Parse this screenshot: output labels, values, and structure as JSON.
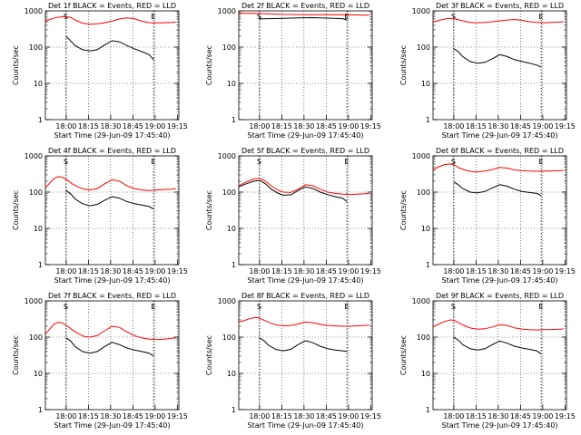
{
  "figure": {
    "ylabel": "Counts/sec",
    "xlabel": "Start Time (29-Jun-09 17:45:40)",
    "colors": {
      "events": "#000000",
      "lld": "#ff0000",
      "axes": "#000000",
      "grid": "#000000"
    }
  },
  "chart_data": [
    {
      "type": "line",
      "title": "Det 1f BLACK = Events, RED = LLD",
      "yscale": "log",
      "ylim": [
        1,
        1000
      ],
      "yticks": [
        "1",
        "10",
        "100",
        "1000"
      ],
      "xticks": [
        "18:00",
        "18:15",
        "18:30",
        "18:45",
        "19:00",
        "19:15"
      ],
      "xlim": [
        0,
        90
      ],
      "marks": [
        {
          "x": 14,
          "label": "S"
        },
        {
          "x": 73,
          "label": "E"
        }
      ],
      "series": [
        {
          "name": "Events",
          "x": [
            14,
            16,
            20,
            25,
            30,
            35,
            40,
            45,
            50,
            55,
            60,
            65,
            70,
            73
          ],
          "values": [
            200,
            165,
            110,
            85,
            78,
            85,
            115,
            150,
            140,
            110,
            90,
            75,
            62,
            45
          ]
        },
        {
          "name": "LLD",
          "x": [
            0,
            3,
            6,
            10,
            14,
            17,
            20,
            25,
            30,
            35,
            40,
            45,
            50,
            55,
            60,
            65,
            70,
            75,
            80,
            85,
            88
          ],
          "values": [
            520,
            580,
            640,
            680,
            690,
            660,
            560,
            460,
            430,
            440,
            470,
            520,
            600,
            640,
            610,
            520,
            470,
            465,
            470,
            480,
            490
          ]
        }
      ]
    },
    {
      "type": "line",
      "title": "Det 2f BLACK = Events, RED = LLD",
      "yscale": "log",
      "ylim": [
        1,
        1000
      ],
      "yticks": [
        "1",
        "10",
        "100",
        "1000"
      ],
      "xticks": [
        "18:00",
        "18:15",
        "18:30",
        "18:45",
        "19:00",
        "19:15"
      ],
      "xlim": [
        0,
        90
      ],
      "marks": [
        {
          "x": 14,
          "label": "S"
        },
        {
          "x": 73,
          "label": "E"
        }
      ],
      "series": [
        {
          "name": "Events",
          "x": [
            14,
            20,
            30,
            40,
            50,
            60,
            70,
            73
          ],
          "values": [
            600,
            610,
            620,
            640,
            650,
            630,
            610,
            560
          ]
        },
        {
          "name": "LLD",
          "x": [
            0,
            10,
            20,
            30,
            40,
            50,
            60,
            70,
            80,
            88
          ],
          "values": [
            860,
            850,
            830,
            800,
            790,
            780,
            790,
            780,
            770,
            760
          ]
        }
      ]
    },
    {
      "type": "line",
      "title": "Det 3f BLACK = Events, RED = LLD",
      "yscale": "log",
      "ylim": [
        1,
        1000
      ],
      "yticks": [
        "1",
        "10",
        "100",
        "1000"
      ],
      "xticks": [
        "18:00",
        "18:15",
        "18:30",
        "18:45",
        "19:00",
        "19:15"
      ],
      "xlim": [
        0,
        90
      ],
      "marks": [
        {
          "x": 14,
          "label": "S"
        },
        {
          "x": 73,
          "label": "E"
        }
      ],
      "series": [
        {
          "name": "Events",
          "x": [
            14,
            17,
            20,
            25,
            30,
            35,
            40,
            45,
            50,
            55,
            60,
            65,
            70,
            73
          ],
          "values": [
            90,
            75,
            55,
            40,
            36,
            38,
            48,
            62,
            55,
            45,
            40,
            36,
            32,
            28
          ]
        },
        {
          "name": "LLD",
          "x": [
            0,
            5,
            10,
            15,
            20,
            25,
            30,
            35,
            40,
            45,
            50,
            55,
            60,
            65,
            70,
            75,
            80,
            85,
            88
          ],
          "values": [
            490,
            560,
            620,
            600,
            530,
            480,
            470,
            480,
            500,
            530,
            560,
            580,
            550,
            500,
            480,
            470,
            480,
            490,
            500
          ]
        }
      ]
    },
    {
      "type": "line",
      "title": "Det 4f BLACK = Events, RED = LLD",
      "yscale": "log",
      "ylim": [
        1,
        1000
      ],
      "yticks": [
        "1",
        "10",
        "100",
        "1000"
      ],
      "xticks": [
        "18:00",
        "18:15",
        "18:30",
        "18:45",
        "19:00",
        "19:15"
      ],
      "xlim": [
        0,
        90
      ],
      "marks": [
        {
          "x": 14,
          "label": "S"
        },
        {
          "x": 73,
          "label": "E"
        }
      ],
      "series": [
        {
          "name": "Events",
          "x": [
            14,
            17,
            20,
            25,
            30,
            35,
            40,
            45,
            50,
            55,
            60,
            65,
            70,
            73
          ],
          "values": [
            110,
            90,
            65,
            48,
            42,
            46,
            60,
            75,
            68,
            55,
            48,
            44,
            40,
            34
          ]
        },
        {
          "name": "LLD",
          "x": [
            0,
            3,
            6,
            9,
            12,
            15,
            18,
            22,
            26,
            30,
            35,
            40,
            45,
            50,
            55,
            60,
            65,
            70,
            75,
            80,
            85,
            88
          ],
          "values": [
            130,
            180,
            240,
            270,
            250,
            210,
            170,
            140,
            120,
            115,
            125,
            170,
            220,
            200,
            150,
            125,
            115,
            110,
            115,
            118,
            120,
            125
          ]
        }
      ]
    },
    {
      "type": "line",
      "title": "Det 5f BLACK = Events, RED = LLD",
      "yscale": "log",
      "ylim": [
        1,
        1000
      ],
      "yticks": [
        "1",
        "10",
        "100",
        "1000"
      ],
      "xticks": [
        "18:00",
        "18:15",
        "18:30",
        "18:45",
        "19:00",
        "19:15"
      ],
      "xlim": [
        0,
        90
      ],
      "marks": [
        {
          "x": 14,
          "label": "S"
        },
        {
          "x": 73,
          "label": "E"
        }
      ],
      "series": [
        {
          "name": "Events",
          "x": [
            0,
            5,
            10,
            14,
            18,
            22,
            26,
            30,
            35,
            40,
            45,
            50,
            55,
            60,
            65,
            70,
            73
          ],
          "values": [
            140,
            170,
            200,
            210,
            170,
            120,
            95,
            82,
            84,
            110,
            140,
            125,
            100,
            85,
            75,
            68,
            55
          ]
        },
        {
          "name": "LLD",
          "x": [
            0,
            5,
            10,
            14,
            18,
            22,
            26,
            30,
            35,
            40,
            45,
            50,
            55,
            60,
            65,
            70,
            75,
            80,
            85,
            88
          ],
          "values": [
            150,
            190,
            230,
            240,
            200,
            150,
            115,
            100,
            98,
            120,
            160,
            150,
            120,
            100,
            92,
            88,
            86,
            88,
            90,
            92
          ]
        }
      ]
    },
    {
      "type": "line",
      "title": "Det 6f BLACK = Events, RED = LLD",
      "yscale": "log",
      "ylim": [
        1,
        1000
      ],
      "yticks": [
        "1",
        "10",
        "100",
        "1000"
      ],
      "xticks": [
        "18:00",
        "18:15",
        "18:30",
        "18:45",
        "19:00",
        "19:15"
      ],
      "xlim": [
        0,
        90
      ],
      "marks": [
        {
          "x": 14,
          "label": "S"
        },
        {
          "x": 73,
          "label": "E"
        }
      ],
      "series": [
        {
          "name": "Events",
          "x": [
            14,
            17,
            20,
            25,
            30,
            35,
            40,
            45,
            50,
            55,
            60,
            65,
            70,
            73
          ],
          "values": [
            190,
            160,
            125,
            100,
            95,
            105,
            130,
            160,
            145,
            120,
            105,
            98,
            92,
            80
          ]
        },
        {
          "name": "LLD",
          "x": [
            0,
            4,
            8,
            12,
            15,
            18,
            22,
            26,
            30,
            35,
            40,
            45,
            50,
            55,
            60,
            65,
            70,
            75,
            80,
            85,
            88
          ],
          "values": [
            420,
            500,
            580,
            600,
            540,
            460,
            400,
            370,
            360,
            380,
            420,
            480,
            460,
            410,
            390,
            380,
            375,
            380,
            385,
            390,
            395
          ]
        }
      ]
    },
    {
      "type": "line",
      "title": "Det 7f BLACK = Events, RED = LLD",
      "yscale": "log",
      "ylim": [
        1,
        1000
      ],
      "yticks": [
        "1",
        "10",
        "100",
        "1000"
      ],
      "xticks": [
        "18:00",
        "18:15",
        "18:30",
        "18:45",
        "19:00",
        "19:15"
      ],
      "xlim": [
        0,
        90
      ],
      "marks": [
        {
          "x": 14,
          "label": "S"
        },
        {
          "x": 73,
          "label": "E"
        }
      ],
      "series": [
        {
          "name": "Events",
          "x": [
            14,
            17,
            20,
            25,
            30,
            35,
            40,
            45,
            50,
            55,
            60,
            65,
            70,
            73
          ],
          "values": [
            95,
            78,
            55,
            40,
            36,
            40,
            55,
            72,
            62,
            50,
            44,
            40,
            36,
            30
          ]
        },
        {
          "name": "LLD",
          "x": [
            0,
            3,
            6,
            9,
            12,
            15,
            18,
            22,
            26,
            30,
            35,
            40,
            45,
            50,
            55,
            60,
            65,
            70,
            75,
            80,
            85,
            88
          ],
          "values": [
            120,
            170,
            230,
            260,
            240,
            200,
            160,
            125,
            105,
            100,
            110,
            150,
            200,
            185,
            140,
            110,
            95,
            88,
            85,
            88,
            92,
            95
          ]
        }
      ]
    },
    {
      "type": "line",
      "title": "Det 8f BLACK = Events, RED = LLD",
      "yscale": "log",
      "ylim": [
        1,
        1000
      ],
      "yticks": [
        "1",
        "10",
        "100",
        "1000"
      ],
      "xticks": [
        "18:00",
        "18:15",
        "18:30",
        "18:45",
        "19:00",
        "19:15"
      ],
      "xlim": [
        0,
        90
      ],
      "marks": [
        {
          "x": 14,
          "label": "S"
        },
        {
          "x": 73,
          "label": "E"
        }
      ],
      "series": [
        {
          "name": "Events",
          "x": [
            14,
            17,
            20,
            25,
            30,
            35,
            40,
            45,
            50,
            55,
            60,
            65,
            70,
            73
          ],
          "values": [
            95,
            80,
            60,
            46,
            42,
            46,
            62,
            80,
            70,
            56,
            48,
            44,
            42,
            40
          ]
        },
        {
          "name": "LLD",
          "x": [
            0,
            4,
            8,
            12,
            15,
            18,
            22,
            26,
            30,
            35,
            40,
            45,
            50,
            55,
            60,
            65,
            70,
            75,
            80,
            85,
            88
          ],
          "values": [
            260,
            290,
            330,
            350,
            320,
            280,
            240,
            215,
            205,
            210,
            230,
            260,
            250,
            225,
            210,
            205,
            200,
            200,
            205,
            210,
            215
          ]
        }
      ]
    },
    {
      "type": "line",
      "title": "Det 9f BLACK = Events, RED = LLD",
      "yscale": "log",
      "ylim": [
        1,
        1000
      ],
      "yticks": [
        "1",
        "10",
        "100",
        "1000"
      ],
      "xticks": [
        "18:00",
        "18:15",
        "18:30",
        "18:45",
        "19:00",
        "19:15"
      ],
      "xlim": [
        0,
        90
      ],
      "marks": [
        {
          "x": 14,
          "label": "S"
        },
        {
          "x": 73,
          "label": "E"
        }
      ],
      "series": [
        {
          "name": "Events",
          "x": [
            14,
            17,
            20,
            25,
            30,
            35,
            40,
            45,
            50,
            55,
            60,
            65,
            70,
            73
          ],
          "values": [
            100,
            82,
            62,
            48,
            44,
            48,
            62,
            78,
            68,
            56,
            50,
            46,
            42,
            34
          ]
        },
        {
          "name": "LLD",
          "x": [
            0,
            4,
            8,
            12,
            15,
            18,
            22,
            26,
            30,
            35,
            40,
            45,
            50,
            55,
            60,
            65,
            70,
            75,
            80,
            85,
            88
          ],
          "values": [
            190,
            230,
            270,
            300,
            280,
            240,
            200,
            175,
            165,
            170,
            190,
            220,
            210,
            180,
            165,
            160,
            158,
            160,
            162,
            165,
            168
          ]
        }
      ]
    }
  ]
}
